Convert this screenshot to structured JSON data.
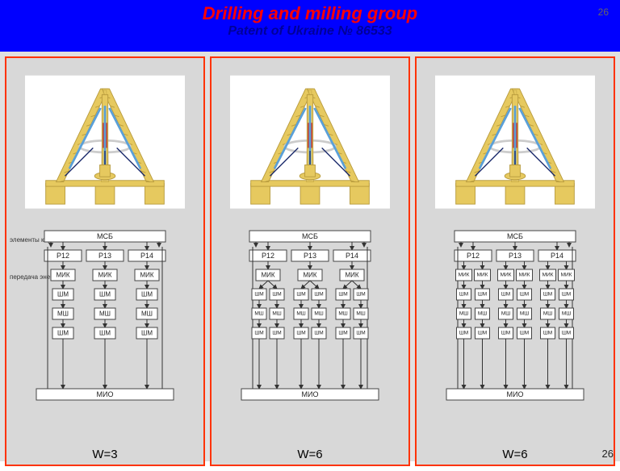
{
  "header": {
    "title": "Drilling and milling group",
    "subtitle": "Patent of Ukraine № 86533",
    "bgcolor": "#0000ff",
    "title_color": "#ff0000",
    "subtitle_color": "#000099",
    "pagenum_top": "26",
    "pagenum_bottom": "26"
  },
  "annotations": {
    "ann1": "элементы каркаса",
    "ann2": "передача энергии"
  },
  "panels": [
    {
      "wlabel": "W=3",
      "annot": true,
      "columns": 3,
      "split": 1,
      "boxes": {
        "top": "МСБ",
        "row": [
          "Р12",
          "Р13",
          "Р14"
        ],
        "mik": "МИК",
        "sh1": "ШМ",
        "msh": "МШ",
        "sh2": "ШМ",
        "bottom": "МИО"
      }
    },
    {
      "wlabel": "W=6",
      "annot": false,
      "columns": 3,
      "split": 2,
      "boxes": {
        "top": "МСБ",
        "row": [
          "Р12",
          "Р13",
          "Р14"
        ],
        "mik": "МИК",
        "sh1": "ШМ",
        "msh": "МШ",
        "sh2": "ШМ",
        "bottom": "МИО"
      }
    },
    {
      "wlabel": "W=6",
      "annot": false,
      "columns": 6,
      "split": 1,
      "boxes": {
        "top": "МСБ",
        "row": [
          "Р12",
          "Р13",
          "Р14"
        ],
        "mik": "МИК",
        "sh1": "ШМ",
        "msh": "МШ",
        "sh2": "ШМ",
        "bottom": "МИО"
      }
    }
  ],
  "model_colors": {
    "frame": "#e6c95f",
    "frame_edge": "#b89b3d",
    "base": "#e6c95f",
    "spindle": "#c4302b",
    "wires_blue": "#5aa0d8",
    "wires_dark": "#1a2a6b",
    "ring": "#cccccc",
    "bg": "#ffffff"
  },
  "schema_colors": {
    "box_fill": "#ffffff",
    "box_stroke": "#444",
    "arrow": "#333",
    "text": "#222"
  }
}
